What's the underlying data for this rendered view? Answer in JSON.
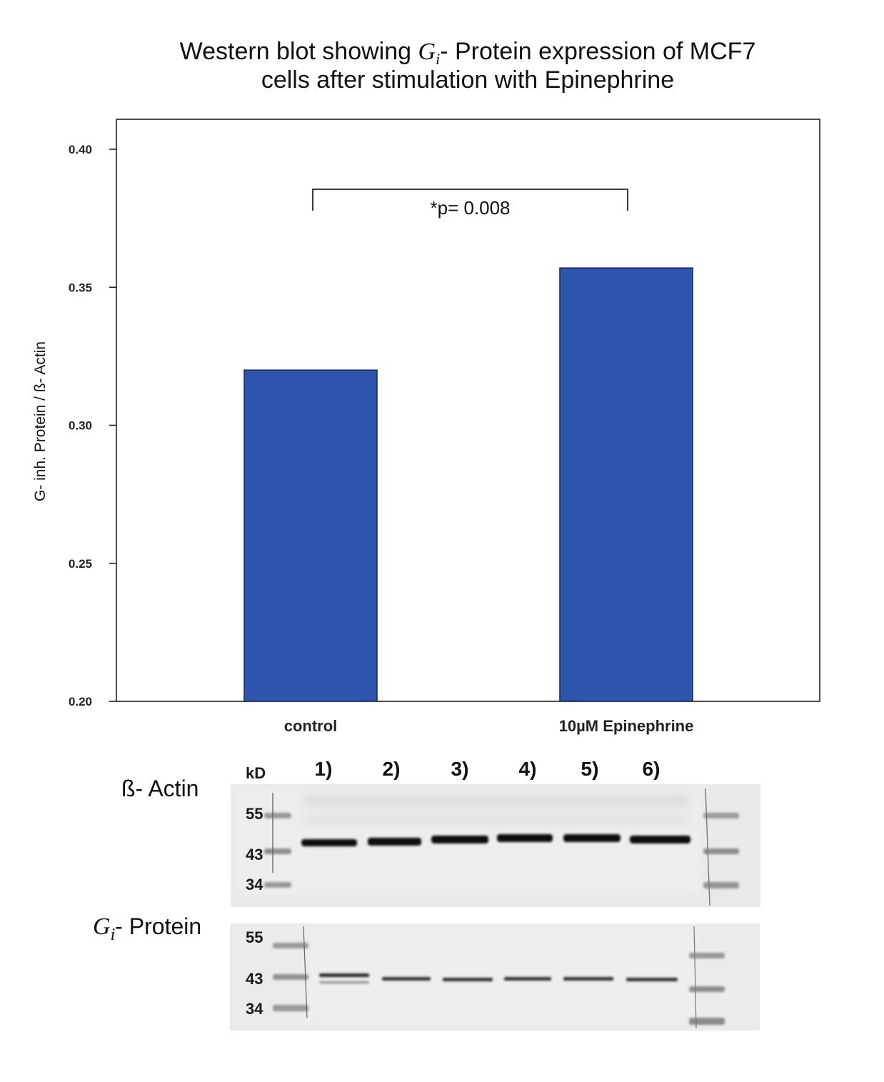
{
  "chart_data": {
    "type": "bar",
    "title": {
      "line1_prefix": "Western blot showing ",
      "line1_symbol": "G",
      "line1_subscript": "i",
      "line1_suffix": "- Protein expression of MCF7",
      "line2": "cells after stimulation with Epinephrine"
    },
    "ylabel": "G- inh. Protein / ß- Actin",
    "xlabel": "",
    "categories": [
      "control",
      "10µM Epinephrine"
    ],
    "values": [
      0.32,
      0.357
    ],
    "ylim": [
      0.2,
      0.41
    ],
    "yticks": [
      0.2,
      0.25,
      0.3,
      0.35,
      0.4
    ],
    "ytick_labels": [
      "0.20",
      "0.25",
      "0.30",
      "0.35",
      "0.40"
    ],
    "bar_color": "#2d55ad",
    "significance": {
      "from": "control",
      "to": "10µM Epinephrine",
      "label": "*p= 0.008"
    }
  },
  "blot": {
    "kd_header": "kD",
    "lanes": [
      "1)",
      "2)",
      "3)",
      "4)",
      "5)",
      "6)"
    ],
    "panels": [
      {
        "label_prefix": "ß- Actin",
        "label_symbol": "",
        "label_subscript": "",
        "markers": [
          "55",
          "43",
          "34"
        ]
      },
      {
        "label_prefix": "",
        "label_symbol": "G",
        "label_subscript": "i",
        "label_suffix": "- Protein",
        "markers": [
          "55",
          "43",
          "34"
        ]
      }
    ]
  }
}
